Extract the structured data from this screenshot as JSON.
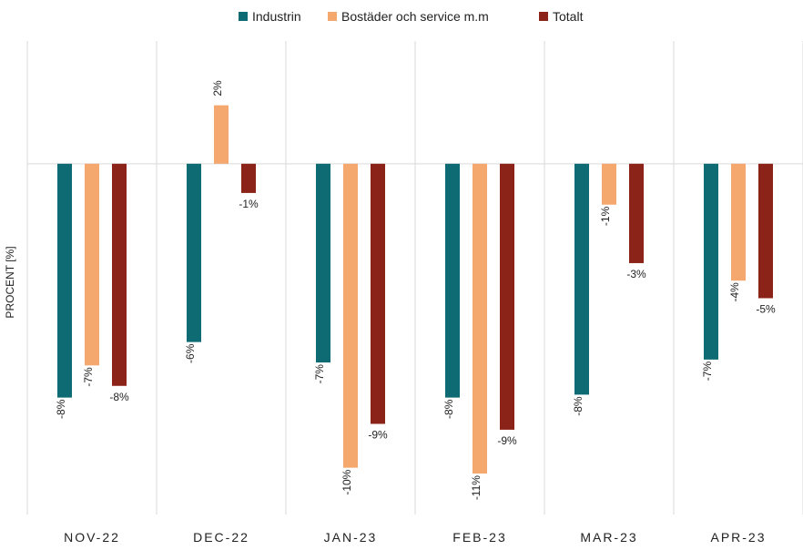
{
  "chart_data": {
    "type": "bar",
    "y_label": "PROCENT [%]",
    "categories": [
      "NOV-22",
      "DEC-22",
      "JAN-23",
      "FEB-23",
      "MAR-23",
      "APR-23"
    ],
    "series": [
      {
        "name": "Industrin",
        "color": "#0e6b74",
        "values": [
          -8.0,
          -6.1,
          -6.8,
          -8.0,
          -7.9,
          -6.7
        ],
        "value_labels": [
          "-8%",
          "-6%",
          "-7%",
          "-8%",
          "-8%",
          "-7%"
        ]
      },
      {
        "name": "Bostäder och service m.m",
        "color": "#f5a86e",
        "values": [
          -6.9,
          2.0,
          -10.4,
          -10.6,
          -1.4,
          -4.0
        ],
        "value_labels": [
          "-7%",
          "2%",
          "-10%",
          "-11%",
          "-1%",
          "-4%"
        ]
      },
      {
        "name": "Totalt",
        "color": "#8b2318",
        "values": [
          -7.6,
          -1.0,
          -8.9,
          -9.1,
          -3.4,
          -4.6
        ],
        "value_labels": [
          "-8%",
          "-1%",
          "-9%",
          "-9%",
          "-3%",
          "-5%"
        ]
      }
    ],
    "ylim": [
      -12,
      4.2
    ]
  }
}
